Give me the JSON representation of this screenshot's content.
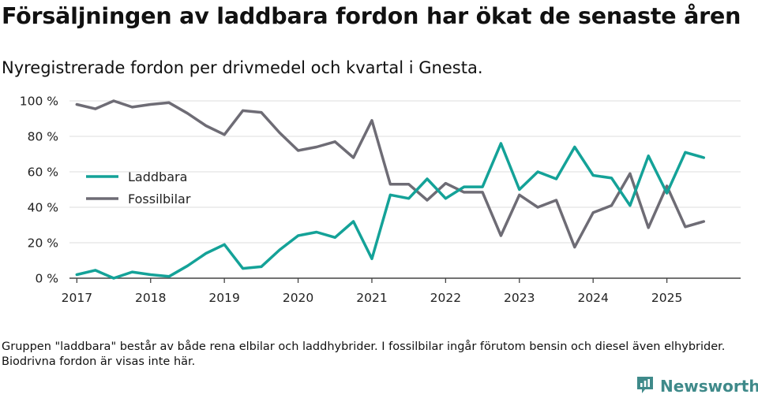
{
  "header": {
    "title": "Försäljningen av laddbara fordon har ökat de senaste åren",
    "subtitle": "Nyregistrerade fordon per drivmedel och kvartal i Gnesta."
  },
  "footer": {
    "note": "Gruppen \"laddbara\" består av både rena elbilar och laddhybrider. I fossilbilar ingår förutom bensin och diesel även elhybrider. Biodrivna fordon är visas inte här.",
    "brand": "Newsworthy",
    "brand_icon": "newsworthy-logo-icon"
  },
  "colors": {
    "laddbara": "#14a298",
    "fossilbilar": "#6e6c75",
    "grid": "#dddddd",
    "axis": "#444444",
    "brand": "#3f8a8a"
  },
  "chart_data": {
    "type": "line",
    "title": "Försäljningen av laddbara fordon har ökat de senaste åren",
    "subtitle": "Nyregistrerade fordon per drivmedel och kvartal i Gnesta.",
    "xlabel": "",
    "ylabel": "",
    "ylim": [
      0,
      100
    ],
    "yticks": [
      0,
      20,
      40,
      60,
      80,
      100
    ],
    "ytick_labels": [
      "0 %",
      "20 %",
      "40 %",
      "60 %",
      "80 %",
      "100 %"
    ],
    "xlim": [
      2016.9,
      2026.0
    ],
    "xticks": [
      2017,
      2018,
      2019,
      2020,
      2021,
      2022,
      2023,
      2024,
      2025
    ],
    "xtick_labels": [
      "2017",
      "2018",
      "2019",
      "2020",
      "2021",
      "2022",
      "2023",
      "2024",
      "2025"
    ],
    "grid": true,
    "legend_position": "left-middle",
    "x": [
      2017.0,
      2017.25,
      2017.5,
      2017.75,
      2018.0,
      2018.25,
      2018.5,
      2018.75,
      2019.0,
      2019.25,
      2019.5,
      2019.75,
      2020.0,
      2020.25,
      2020.5,
      2020.75,
      2021.0,
      2021.25,
      2021.5,
      2021.75,
      2022.0,
      2022.25,
      2022.5,
      2022.75,
      2023.0,
      2023.25,
      2023.5,
      2023.75,
      2024.0,
      2024.25,
      2024.5,
      2024.75,
      2025.0,
      2025.25,
      2025.5
    ],
    "series": [
      {
        "name": "Laddbara",
        "color": "#14a298",
        "values": [
          2,
          4.5,
          0,
          3.5,
          2,
          1,
          7,
          14,
          19,
          5.5,
          6.5,
          16,
          24,
          26,
          23,
          32,
          11,
          47,
          45,
          56,
          45,
          51.5,
          51.5,
          76,
          50,
          60,
          56,
          74,
          58,
          56.5,
          41,
          69,
          48,
          71,
          68
        ]
      },
      {
        "name": "Fossilbilar",
        "color": "#6e6c75",
        "values": [
          98,
          95.5,
          100,
          96.5,
          98,
          99,
          93,
          86,
          81,
          94.5,
          93.5,
          82,
          72,
          74,
          77,
          68,
          89,
          53,
          53,
          44,
          53.5,
          48.5,
          48.5,
          24,
          47,
          40,
          44,
          17.5,
          37,
          41,
          59,
          28.5,
          52,
          29,
          32
        ]
      }
    ]
  }
}
